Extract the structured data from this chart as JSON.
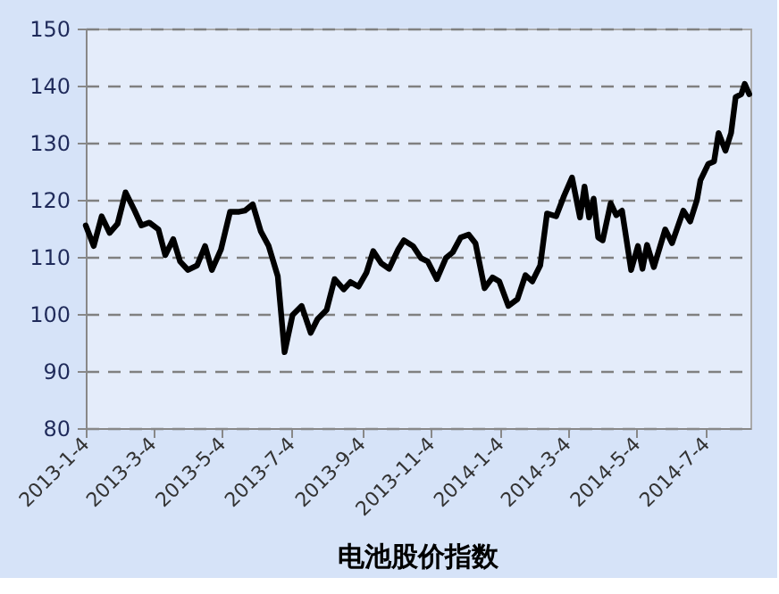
{
  "chart_data": {
    "type": "line",
    "title": "电池股价指数",
    "x": [
      "2013-01-04",
      "2013-01-11",
      "2013-01-18",
      "2013-01-25",
      "2013-02-01",
      "2013-02-08",
      "2013-02-16",
      "2013-02-22",
      "2013-03-01",
      "2013-03-09",
      "2013-03-15",
      "2013-03-22",
      "2013-03-28",
      "2013-04-04",
      "2013-04-12",
      "2013-04-19",
      "2013-04-25",
      "2013-05-03",
      "2013-05-11",
      "2013-05-19",
      "2013-05-24",
      "2013-05-31",
      "2013-06-07",
      "2013-06-14",
      "2013-06-22",
      "2013-06-28",
      "2013-07-05",
      "2013-07-13",
      "2013-07-21",
      "2013-07-27",
      "2013-08-04",
      "2013-08-11",
      "2013-08-19",
      "2013-08-25",
      "2013-09-01",
      "2013-09-08",
      "2013-09-14",
      "2013-09-21",
      "2013-09-28",
      "2013-10-06",
      "2013-10-11",
      "2013-10-19",
      "2013-10-26",
      "2013-11-01",
      "2013-11-09",
      "2013-11-17",
      "2013-11-23",
      "2013-11-30",
      "2013-12-07",
      "2013-12-13",
      "2013-12-21",
      "2013-12-28",
      "2014-01-03",
      "2014-01-11",
      "2014-01-19",
      "2014-01-26",
      "2014-02-01",
      "2014-02-08",
      "2014-02-14",
      "2014-02-22",
      "2014-03-01",
      "2014-03-08",
      "2014-03-15",
      "2014-03-19",
      "2014-03-23",
      "2014-03-27",
      "2014-03-31",
      "2014-04-04",
      "2014-04-11",
      "2014-04-16",
      "2014-04-21",
      "2014-04-29",
      "2014-05-05",
      "2014-05-09",
      "2014-05-13",
      "2014-05-19",
      "2014-05-29",
      "2014-06-04",
      "2014-06-14",
      "2014-06-20",
      "2014-06-26",
      "2014-06-29",
      "2014-07-06",
      "2014-07-11",
      "2014-07-15",
      "2014-07-21",
      "2014-07-26",
      "2014-07-30",
      "2014-08-04",
      "2014-08-07",
      "2014-08-11"
    ],
    "series": [
      {
        "color": "#000000",
        "values": [
          115.5,
          111.9,
          117.1,
          114.2,
          115.8,
          121.3,
          118.1,
          115.5,
          116.0,
          114.8,
          110.3,
          113.1,
          109.2,
          107.7,
          108.5,
          111.9,
          107.7,
          111.3,
          117.9,
          117.9,
          118.1,
          119.2,
          114.5,
          111.9,
          106.6,
          93.3,
          99.8,
          101.4,
          96.7,
          99.1,
          100.7,
          106.1,
          104.3,
          105.6,
          104.8,
          107.2,
          111.0,
          108.9,
          107.9,
          111.3,
          112.9,
          111.9,
          109.8,
          109.2,
          106.1,
          109.8,
          110.8,
          113.4,
          113.9,
          112.4,
          104.5,
          106.4,
          105.7,
          101.4,
          102.6,
          106.8,
          105.7,
          108.5,
          117.6,
          117.1,
          120.7,
          123.9,
          116.9,
          122.3,
          116.9,
          120.2,
          113.4,
          112.9,
          119.4,
          117.3,
          118.1,
          107.7,
          111.9,
          107.9,
          112.1,
          108.2,
          114.8,
          112.4,
          118.1,
          116.2,
          120.0,
          123.4,
          126.3,
          126.7,
          131.7,
          128.6,
          131.7,
          138.0,
          138.5,
          140.3,
          138.5
        ]
      }
    ],
    "xlim": [
      "2013-01-04",
      "2014-08-12"
    ],
    "xticks": [
      {
        "value": "2013-01-04",
        "label": "2013-1-4"
      },
      {
        "value": "2013-03-04",
        "label": "2013-3-4"
      },
      {
        "value": "2013-05-04",
        "label": "2013-5-4"
      },
      {
        "value": "2013-07-04",
        "label": "2013-7-4"
      },
      {
        "value": "2013-09-04",
        "label": "2013-9-4"
      },
      {
        "value": "2013-11-04",
        "label": "2013-11-4"
      },
      {
        "value": "2014-01-04",
        "label": "2014-1-4"
      },
      {
        "value": "2014-03-04",
        "label": "2014-3-4"
      },
      {
        "value": "2014-05-04",
        "label": "2014-5-4"
      },
      {
        "value": "2014-07-04",
        "label": "2014-7-4"
      }
    ],
    "ylim": [
      80,
      150
    ],
    "yticks": [
      80,
      90,
      100,
      110,
      120,
      130,
      140,
      150
    ],
    "grid": "y",
    "line_style": "solid",
    "marker": "none",
    "legend": false
  }
}
